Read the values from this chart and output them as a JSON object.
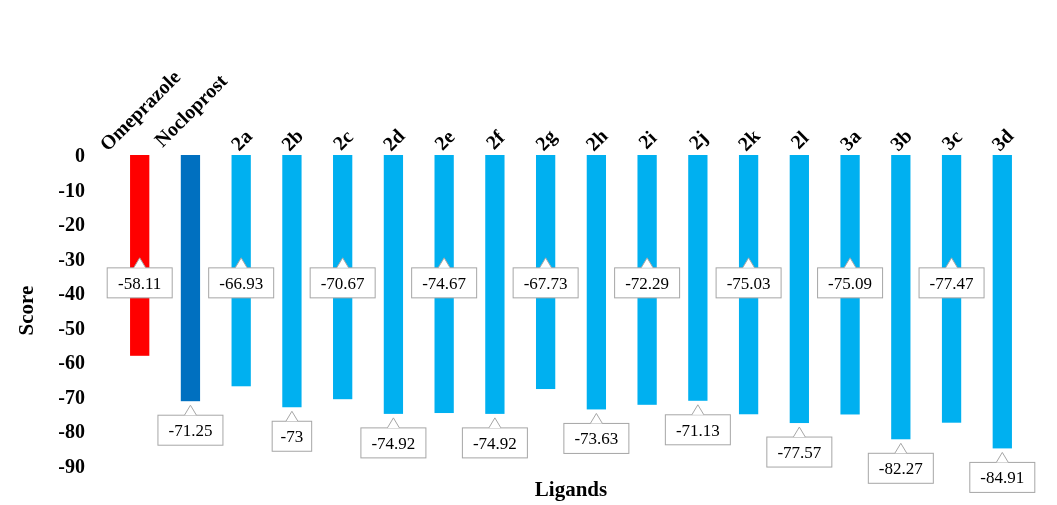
{
  "chart_data": {
    "type": "bar",
    "xlabel": "Ligands",
    "ylabel": "Score",
    "categories": [
      "Omeprazole",
      "Nocloprost",
      "2a",
      "2b",
      "2c",
      "2d",
      "2e",
      "2f",
      "2g",
      "2h",
      "2i",
      "2j",
      "2k",
      "2l",
      "3a",
      "3b",
      "3c",
      "3d"
    ],
    "values": [
      -58.11,
      -71.25,
      -66.93,
      -73,
      -70.67,
      -74.92,
      -74.67,
      -74.92,
      -67.73,
      -73.63,
      -72.29,
      -71.13,
      -75.03,
      -77.57,
      -75.09,
      -82.27,
      -77.47,
      -84.91
    ],
    "colors": [
      "#ff0000",
      "#0070c0",
      "#00b0f0",
      "#00b0f0",
      "#00b0f0",
      "#00b0f0",
      "#00b0f0",
      "#00b0f0",
      "#00b0f0",
      "#00b0f0",
      "#00b0f0",
      "#00b0f0",
      "#00b0f0",
      "#00b0f0",
      "#00b0f0",
      "#00b0f0",
      "#00b0f0",
      "#00b0f0"
    ],
    "ylim": [
      -90,
      0
    ],
    "yticks": [
      0,
      -10,
      -20,
      -30,
      -40,
      -50,
      -60,
      -70,
      -80,
      -90
    ],
    "data_labels": true,
    "grid": false
  }
}
